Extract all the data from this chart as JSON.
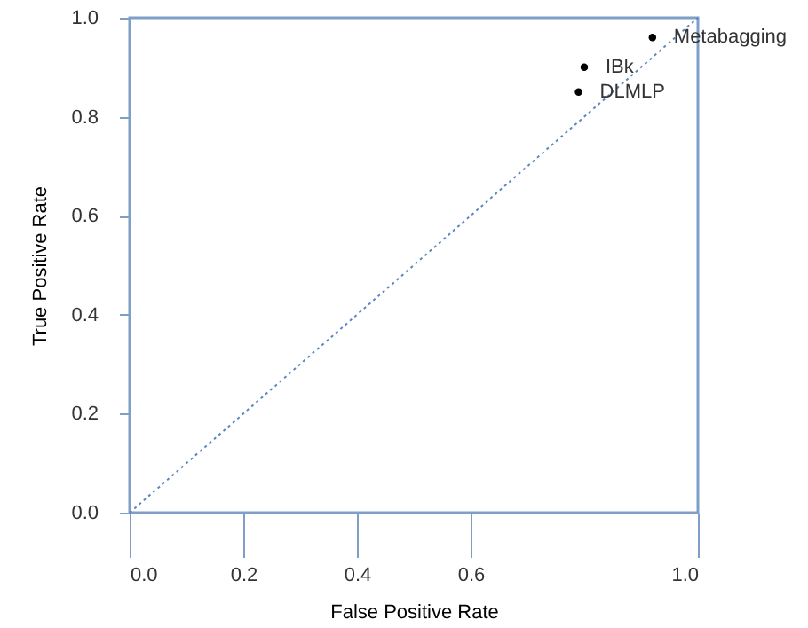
{
  "chart_data": {
    "type": "scatter",
    "xlabel": "False Positive Rate",
    "ylabel": "True Positive Rate",
    "xlim": [
      0,
      1
    ],
    "ylim": [
      0,
      1
    ],
    "xticks": [
      {
        "value": 0,
        "label": "0.0"
      },
      {
        "value": 0.2,
        "label": "0.2"
      },
      {
        "value": 0.4,
        "label": "0.4"
      },
      {
        "value": 0.6,
        "label": "0.6"
      },
      {
        "value": 1,
        "label": "1.0"
      }
    ],
    "yticks": [
      {
        "value": 0,
        "label": "0.0"
      },
      {
        "value": 0.2,
        "label": "0.2"
      },
      {
        "value": 0.4,
        "label": "0.4"
      },
      {
        "value": 0.6,
        "label": "0.6"
      },
      {
        "value": 0.8,
        "label": "0.8"
      },
      {
        "value": 1,
        "label": "1.0"
      }
    ],
    "grid": false,
    "marker": "circle",
    "series": [
      {
        "type": "line",
        "x": [
          0,
          1
        ],
        "values": [
          0,
          1
        ],
        "color": "#5b86c0",
        "line_style": "dotted",
        "marker": "none"
      },
      {
        "name": "Metabagging",
        "x": [
          0.92
        ],
        "values": [
          0.96
        ],
        "color": "#000000"
      },
      {
        "name": "IBk",
        "x": [
          0.8
        ],
        "values": [
          0.9
        ],
        "color": "#000000"
      },
      {
        "name": "DLMLP",
        "x": [
          0.79
        ],
        "values": [
          0.85
        ],
        "color": "#000000"
      }
    ]
  }
}
